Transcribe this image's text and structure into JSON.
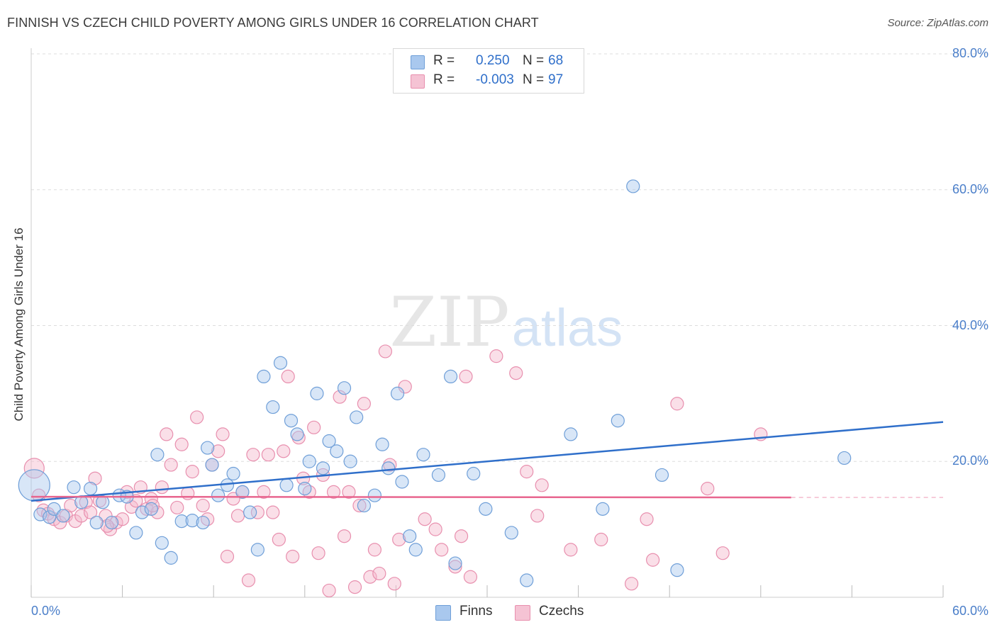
{
  "title": "FINNISH VS CZECH CHILD POVERTY AMONG GIRLS UNDER 16 CORRELATION CHART",
  "source": "Source: ZipAtlas.com",
  "watermark": {
    "zip": "ZIP",
    "atlas": "atlas"
  },
  "legend": {
    "rows": [
      {
        "r_label": "R =",
        "r_value": "0.250",
        "n_label": "N =",
        "n_value": "68"
      },
      {
        "r_label": "R =",
        "r_value": "-0.003",
        "n_label": "N =",
        "n_value": "97"
      }
    ]
  },
  "bottom_legend": {
    "finns": "Finns",
    "czechs": "Czechs"
  },
  "colors": {
    "finns_fill": "#a9c8ee",
    "finns_stroke": "#6f9fd8",
    "finns_line": "#2f6fca",
    "czechs_fill": "#f5b8cd",
    "czechs_stroke": "#e88fae",
    "czechs_line": "#e8668f",
    "grid": "#dddddd",
    "tick_text": "#4a7ec9"
  },
  "chart_data": {
    "type": "scatter",
    "title": "FINNISH VS CZECH CHILD POVERTY AMONG GIRLS UNDER 16 CORRELATION CHART",
    "xlabel": "",
    "ylabel": "Child Poverty Among Girls Under 16",
    "xlim": [
      0,
      60
    ],
    "ylim": [
      0,
      80
    ],
    "x_tick_labels": [
      "0.0%",
      "60.0%"
    ],
    "y_tick_labels": [
      "80.0%",
      "60.0%",
      "40.0%",
      "20.0%"
    ],
    "y_tick_values": [
      80,
      60,
      40,
      20
    ],
    "series": [
      {
        "name": "Finns",
        "r": 0.25,
        "n": 68,
        "trend": {
          "x": [
            0,
            60
          ],
          "y": [
            14.2,
            25.8
          ]
        },
        "points": [
          [
            0.2,
            16.5,
            22
          ],
          [
            0.6,
            12.2,
            9
          ],
          [
            1.2,
            11.8,
            9
          ],
          [
            1.5,
            13.0,
            9
          ],
          [
            2.1,
            12.0,
            9
          ],
          [
            2.8,
            16.2,
            9
          ],
          [
            3.3,
            14.0,
            9
          ],
          [
            3.9,
            16.0,
            9
          ],
          [
            4.3,
            11.0,
            9
          ],
          [
            4.7,
            14.0,
            9
          ],
          [
            5.3,
            11.0,
            9
          ],
          [
            5.8,
            15.0,
            9
          ],
          [
            6.3,
            14.8,
            9
          ],
          [
            6.9,
            9.5,
            9
          ],
          [
            7.3,
            12.5,
            9
          ],
          [
            7.9,
            13.0,
            9
          ],
          [
            8.3,
            21.0,
            9
          ],
          [
            8.6,
            8.0,
            9
          ],
          [
            9.2,
            5.8,
            9
          ],
          [
            9.9,
            11.2,
            9
          ],
          [
            10.6,
            11.3,
            9
          ],
          [
            11.3,
            11.0,
            9
          ],
          [
            11.6,
            22.0,
            9
          ],
          [
            11.9,
            19.5,
            9
          ],
          [
            12.3,
            15.0,
            9
          ],
          [
            12.9,
            16.5,
            9
          ],
          [
            13.3,
            18.2,
            9
          ],
          [
            13.9,
            15.5,
            9
          ],
          [
            14.4,
            12.5,
            9
          ],
          [
            14.9,
            7.0,
            9
          ],
          [
            15.3,
            32.5,
            9
          ],
          [
            15.9,
            28.0,
            9
          ],
          [
            16.4,
            34.5,
            9
          ],
          [
            16.8,
            16.5,
            9
          ],
          [
            17.1,
            26.0,
            9
          ],
          [
            17.5,
            24.0,
            9
          ],
          [
            18.0,
            16.0,
            9
          ],
          [
            18.3,
            20.0,
            9
          ],
          [
            18.8,
            30.0,
            9
          ],
          [
            19.2,
            19.0,
            9
          ],
          [
            19.6,
            23.0,
            9
          ],
          [
            20.1,
            21.5,
            9
          ],
          [
            20.6,
            30.8,
            9
          ],
          [
            21.0,
            20.0,
            9
          ],
          [
            21.4,
            26.5,
            9
          ],
          [
            21.9,
            13.5,
            9
          ],
          [
            22.6,
            15.0,
            9
          ],
          [
            23.1,
            22.5,
            9
          ],
          [
            23.5,
            19.0,
            9
          ],
          [
            24.1,
            30.0,
            9
          ],
          [
            24.4,
            17.0,
            9
          ],
          [
            24.9,
            9.0,
            9
          ],
          [
            25.3,
            7.0,
            9
          ],
          [
            25.8,
            21.0,
            9
          ],
          [
            26.8,
            18.0,
            9
          ],
          [
            27.6,
            32.5,
            9
          ],
          [
            27.9,
            5.0,
            9
          ],
          [
            29.1,
            18.2,
            9
          ],
          [
            29.9,
            13.0,
            9
          ],
          [
            31.6,
            9.5,
            9
          ],
          [
            32.6,
            2.5,
            9
          ],
          [
            35.5,
            24.0,
            9
          ],
          [
            37.6,
            13.0,
            9
          ],
          [
            38.6,
            26.0,
            9
          ],
          [
            39.6,
            60.5,
            9
          ],
          [
            41.5,
            18.0,
            9
          ],
          [
            42.5,
            4.0,
            9
          ],
          [
            53.5,
            20.5,
            9
          ]
        ]
      },
      {
        "name": "Czechs",
        "r": -0.003,
        "n": 97,
        "trend": {
          "x": [
            0,
            50
          ],
          "y": [
            14.8,
            14.7
          ],
          "dashed_until": 60
        },
        "points": [
          [
            0.2,
            19.0,
            14
          ],
          [
            0.5,
            15.0,
            9
          ],
          [
            0.8,
            12.8,
            9
          ],
          [
            1.1,
            12.3,
            9
          ],
          [
            1.5,
            11.5,
            9
          ],
          [
            1.9,
            11.0,
            9
          ],
          [
            2.3,
            12.0,
            9
          ],
          [
            2.6,
            13.5,
            9
          ],
          [
            2.9,
            11.2,
            9
          ],
          [
            3.3,
            12.0,
            9
          ],
          [
            3.6,
            14.0,
            9
          ],
          [
            3.9,
            12.5,
            9
          ],
          [
            4.2,
            17.5,
            9
          ],
          [
            4.5,
            14.2,
            9
          ],
          [
            4.9,
            12.0,
            9
          ],
          [
            5.2,
            10.0,
            9
          ],
          [
            5.6,
            11.0,
            9
          ],
          [
            6.0,
            11.5,
            9
          ],
          [
            6.3,
            15.5,
            9
          ],
          [
            6.6,
            13.3,
            9
          ],
          [
            6.9,
            14.2,
            9
          ],
          [
            7.2,
            16.2,
            9
          ],
          [
            7.6,
            13.0,
            9
          ],
          [
            7.9,
            14.5,
            9
          ],
          [
            8.3,
            12.5,
            9
          ],
          [
            8.6,
            16.2,
            9
          ],
          [
            8.9,
            24.0,
            9
          ],
          [
            9.2,
            19.5,
            9
          ],
          [
            9.6,
            13.2,
            9
          ],
          [
            9.9,
            22.5,
            9
          ],
          [
            10.3,
            15.3,
            9
          ],
          [
            10.6,
            18.5,
            9
          ],
          [
            10.9,
            26.5,
            9
          ],
          [
            11.3,
            13.5,
            9
          ],
          [
            11.6,
            11.5,
            9
          ],
          [
            11.9,
            19.5,
            9
          ],
          [
            12.3,
            21.5,
            9
          ],
          [
            12.6,
            24.0,
            9
          ],
          [
            12.9,
            6.0,
            9
          ],
          [
            13.3,
            14.5,
            9
          ],
          [
            13.6,
            12.0,
            9
          ],
          [
            13.9,
            15.5,
            9
          ],
          [
            14.3,
            2.5,
            9
          ],
          [
            14.6,
            21.0,
            9
          ],
          [
            14.9,
            12.5,
            9
          ],
          [
            15.3,
            15.5,
            9
          ],
          [
            15.6,
            21.0,
            9
          ],
          [
            15.9,
            12.5,
            9
          ],
          [
            16.3,
            8.5,
            9
          ],
          [
            16.6,
            21.5,
            9
          ],
          [
            16.9,
            32.5,
            9
          ],
          [
            17.2,
            6.0,
            9
          ],
          [
            17.6,
            23.5,
            9
          ],
          [
            17.9,
            17.5,
            9
          ],
          [
            18.3,
            15.5,
            9
          ],
          [
            18.6,
            25.0,
            9
          ],
          [
            18.9,
            6.5,
            9
          ],
          [
            19.2,
            18.0,
            9
          ],
          [
            19.6,
            1.0,
            9
          ],
          [
            19.9,
            15.5,
            9
          ],
          [
            20.3,
            29.5,
            9
          ],
          [
            20.6,
            9.0,
            9
          ],
          [
            20.9,
            15.5,
            9
          ],
          [
            21.3,
            1.5,
            9
          ],
          [
            21.6,
            13.5,
            9
          ],
          [
            21.9,
            28.5,
            9
          ],
          [
            22.3,
            3.0,
            9
          ],
          [
            22.6,
            7.0,
            9
          ],
          [
            22.9,
            3.5,
            9
          ],
          [
            23.3,
            36.2,
            9
          ],
          [
            23.6,
            19.5,
            9
          ],
          [
            23.9,
            2.0,
            9
          ],
          [
            24.2,
            8.5,
            9
          ],
          [
            24.6,
            31.0,
            9
          ],
          [
            25.9,
            11.5,
            9
          ],
          [
            26.6,
            10.0,
            9
          ],
          [
            27.9,
            4.5,
            9
          ],
          [
            28.3,
            9.0,
            9
          ],
          [
            28.6,
            32.5,
            9
          ],
          [
            28.9,
            3.0,
            9
          ],
          [
            30.6,
            35.5,
            9
          ],
          [
            31.9,
            33.0,
            9
          ],
          [
            32.6,
            18.5,
            9
          ],
          [
            33.3,
            12.0,
            9
          ],
          [
            33.6,
            16.5,
            9
          ],
          [
            35.5,
            7.0,
            9
          ],
          [
            37.5,
            8.5,
            9
          ],
          [
            39.5,
            2.0,
            9
          ],
          [
            40.5,
            11.5,
            9
          ],
          [
            40.9,
            5.5,
            9
          ],
          [
            42.5,
            28.5,
            9
          ],
          [
            44.5,
            16.0,
            9
          ],
          [
            45.5,
            6.5,
            9
          ],
          [
            48.0,
            24.0,
            9
          ],
          [
            8.0,
            13.5,
            9
          ],
          [
            5.0,
            10.5,
            9
          ],
          [
            27.0,
            7.0,
            9
          ]
        ]
      }
    ]
  }
}
